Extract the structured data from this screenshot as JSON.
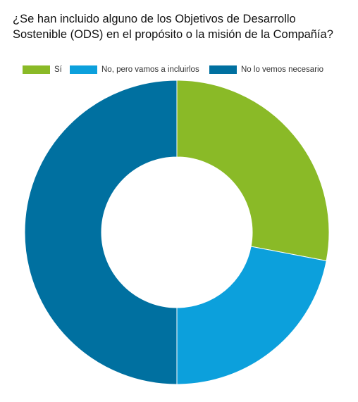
{
  "chart_data": {
    "type": "pie",
    "title": "¿Se han incluido alguno de los Objetivos de Desarrollo Sostenible (ODS) en el propósito o la misión de la Compañía?",
    "categories": [
      "Sí",
      "No, pero vamos a incluirlos",
      "No lo vemos necesario"
    ],
    "values": [
      28,
      22,
      50
    ],
    "colors": [
      "#8aba27",
      "#0ca0dc",
      "#0070a0"
    ],
    "donut": true,
    "legend_position": "top"
  }
}
